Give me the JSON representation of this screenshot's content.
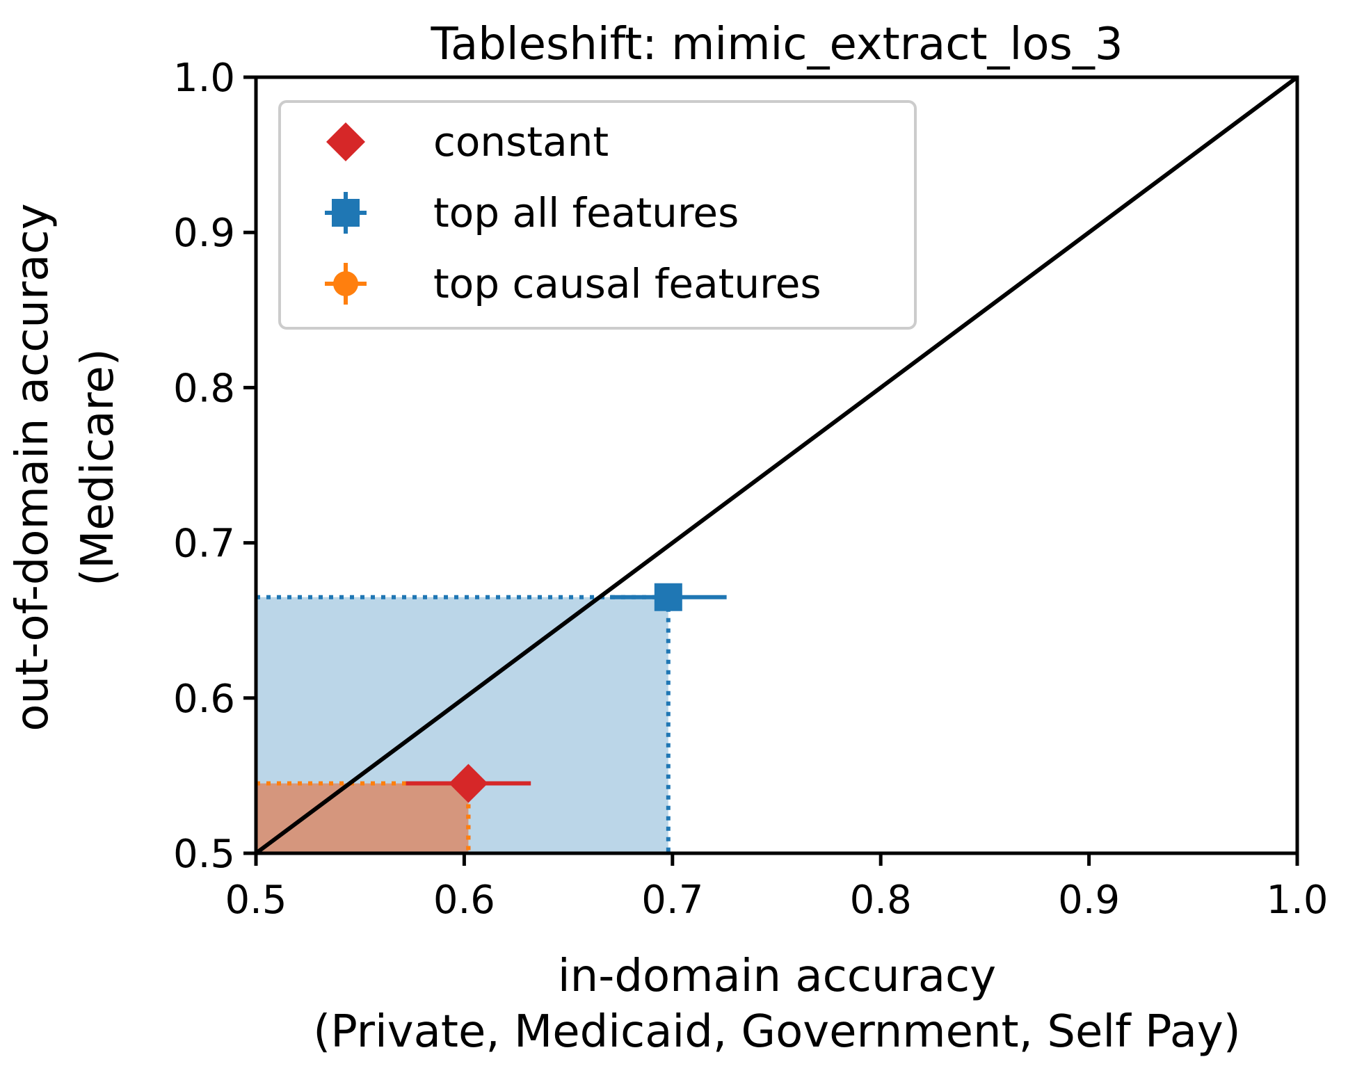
{
  "chart_data": {
    "type": "scatter",
    "title": "Tableshift: mimic_extract_los_3",
    "xlabel_lines": [
      "in-domain accuracy",
      "(Private, Medicaid, Government, Self Pay)"
    ],
    "ylabel_lines": [
      "out-of-domain accuracy",
      "(Medicare)"
    ],
    "xlim": [
      0.5,
      1.0
    ],
    "ylim": [
      0.5,
      1.0
    ],
    "xticks": [
      "0.5",
      "0.6",
      "0.7",
      "0.8",
      "0.9",
      "1.0"
    ],
    "yticks": [
      "0.5",
      "0.6",
      "0.7",
      "0.8",
      "0.9",
      "1.0"
    ],
    "grid": false,
    "legend_position": "top-left",
    "diagonal": {
      "from": [
        0.5,
        0.5
      ],
      "to": [
        1.0,
        1.0
      ],
      "color": "#000000"
    },
    "series": [
      {
        "name": "constant",
        "marker": "diamond",
        "color": "#d62728",
        "x": 0.602,
        "y": 0.545,
        "x_err": 0.03,
        "y_err": 0.0
      },
      {
        "name": "top all features",
        "marker": "square",
        "color": "#1f77b4",
        "x": 0.698,
        "y": 0.665,
        "x_err": 0.028,
        "y_err": 0.0
      },
      {
        "name": "top causal features",
        "marker": "circle",
        "color": "#ff7f0e",
        "x": 0.602,
        "y": 0.545,
        "x_err": 0.0,
        "y_err": 0.0
      }
    ]
  }
}
